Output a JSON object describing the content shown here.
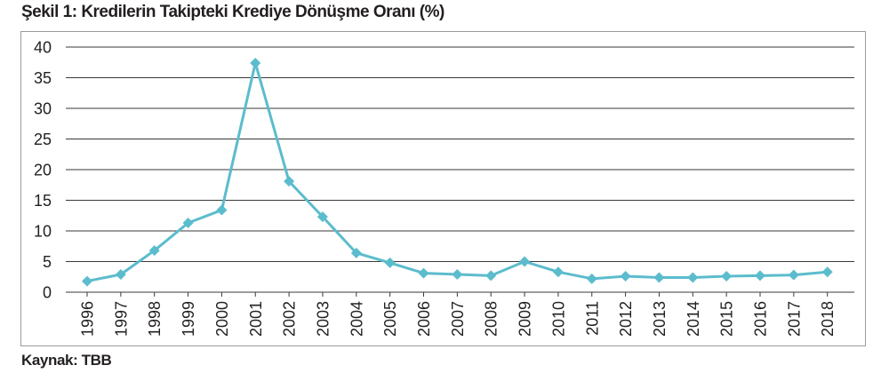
{
  "figure_title": "Şekil 1: Kredilerin Takipteki Krediye Dönüşme Oranı (%)",
  "source_label": "Kaynak: TBB",
  "colors": {
    "line": "#5bbccd",
    "grid": "#3a3a3a",
    "frame": "#9b9b9b",
    "text": "#231f20"
  },
  "chart_data": {
    "type": "line",
    "title": "Şekil 1: Kredilerin Takipteki Krediye Dönüşme Oranı (%)",
    "xlabel": "",
    "ylabel": "",
    "ylim": [
      0,
      40
    ],
    "yticks": [
      0,
      5,
      10,
      15,
      20,
      25,
      30,
      35,
      40
    ],
    "grid": true,
    "legend": "none",
    "categories": [
      "1996",
      "1997",
      "1998",
      "1999",
      "2000",
      "2001",
      "2002",
      "2003",
      "2004",
      "2005",
      "2006",
      "2007",
      "2008",
      "2009",
      "2010",
      "2011",
      "2012",
      "2013",
      "2014",
      "2015",
      "2016",
      "2017",
      "2018"
    ],
    "series": [
      {
        "values": [
          1.8,
          2.9,
          6.8,
          11.3,
          13.4,
          37.4,
          18.1,
          12.3,
          6.4,
          4.8,
          3.1,
          2.9,
          2.7,
          5.0,
          3.3,
          2.2,
          2.6,
          2.4,
          2.4,
          2.6,
          2.7,
          2.8,
          3.3
        ],
        "marker": "diamond"
      }
    ]
  }
}
